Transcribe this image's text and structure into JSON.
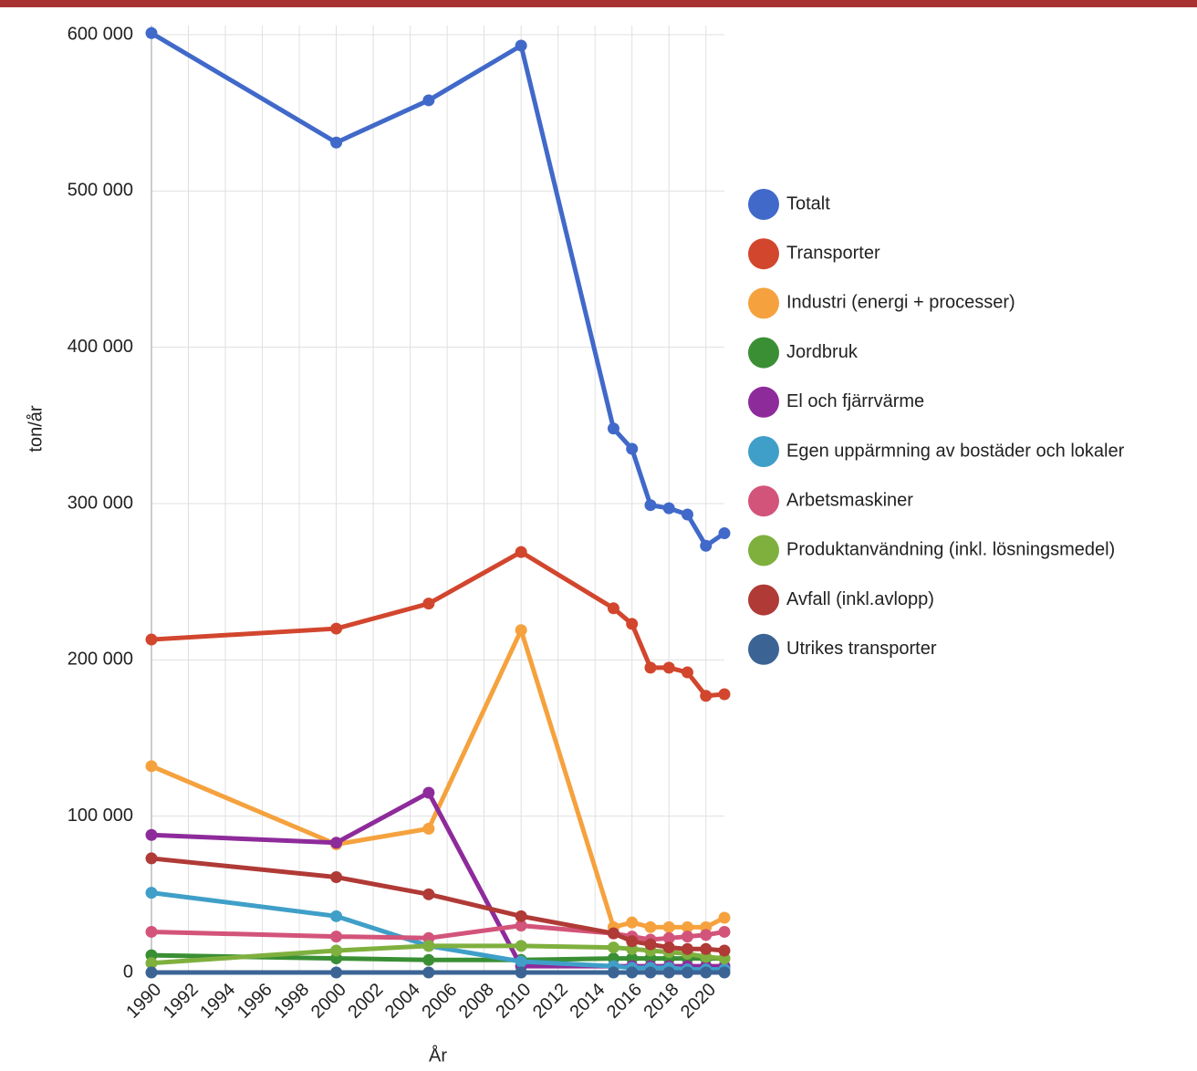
{
  "chart_data": {
    "type": "line",
    "x_label": "År",
    "y_label": "ton/år",
    "x": [
      1990,
      2000,
      2005,
      2010,
      2015,
      2016,
      2017,
      2018,
      2019,
      2020,
      2021
    ],
    "xlim": [
      1990,
      2021
    ],
    "xticks": [
      1990,
      1992,
      1994,
      1996,
      1998,
      2000,
      2002,
      2004,
      2006,
      2008,
      2010,
      2012,
      2014,
      2016,
      2018,
      2020
    ],
    "ylim": [
      0,
      600000
    ],
    "yticks": [
      {
        "value": 0,
        "label": "0"
      },
      {
        "value": 100000,
        "label": "100 000"
      },
      {
        "value": 200000,
        "label": "200 000"
      },
      {
        "value": 300000,
        "label": "300 000"
      },
      {
        "value": 400000,
        "label": "400 000"
      },
      {
        "value": 500000,
        "label": "500 000"
      },
      {
        "value": 600000,
        "label": "600 000"
      }
    ],
    "grid": true,
    "legend": "right",
    "series": [
      {
        "name": "Totalt",
        "color": "#4169c9",
        "values": [
          601000,
          531000,
          558000,
          593000,
          348000,
          335000,
          299000,
          297000,
          293000,
          273000,
          281000
        ]
      },
      {
        "name": "Transporter",
        "color": "#d2462e",
        "values": [
          213000,
          220000,
          236000,
          269000,
          233000,
          223000,
          195000,
          195000,
          192000,
          177000,
          178000
        ]
      },
      {
        "name": "Industri (energi + processer)",
        "color": "#f5a23e",
        "values": [
          132000,
          82000,
          92000,
          219000,
          29000,
          32000,
          29000,
          29000,
          29000,
          29000,
          35000
        ]
      },
      {
        "name": "Jordbruk",
        "color": "#3a8f35",
        "values": [
          11000,
          9000,
          8000,
          8000,
          9000,
          9000,
          9000,
          9000,
          9000,
          9000,
          9000
        ]
      },
      {
        "name": "El och fjärrvärme",
        "color": "#8e2b9b",
        "values": [
          88000,
          83000,
          115000,
          4000,
          4000,
          4000,
          4000,
          4000,
          4000,
          4000,
          4000
        ]
      },
      {
        "name": "Egen uppärmning av bostäder och lokaler",
        "color": "#3f9fc8",
        "values": [
          51000,
          36000,
          17000,
          7000,
          4000,
          3000,
          3000,
          3000,
          2000,
          2000,
          2000
        ]
      },
      {
        "name": "Arbetsmaskiner",
        "color": "#d3547a",
        "values": [
          26000,
          23000,
          22000,
          30000,
          25000,
          23000,
          21000,
          22000,
          23000,
          24000,
          26000
        ]
      },
      {
        "name": "Produktanvändning (inkl. lösningsmedel)",
        "color": "#7fb03e",
        "values": [
          6000,
          14000,
          17000,
          17000,
          16000,
          15000,
          14000,
          13000,
          12000,
          10000,
          9000
        ]
      },
      {
        "name": "Avfall (inkl.avlopp)",
        "color": "#b03a36",
        "values": [
          73000,
          61000,
          50000,
          36000,
          25000,
          20000,
          18000,
          16000,
          15000,
          15000,
          14000
        ]
      },
      {
        "name": "Utrikes transporter",
        "color": "#3b6494",
        "values": [
          0,
          0,
          0,
          0,
          0,
          0,
          0,
          0,
          0,
          0,
          0
        ]
      }
    ]
  }
}
